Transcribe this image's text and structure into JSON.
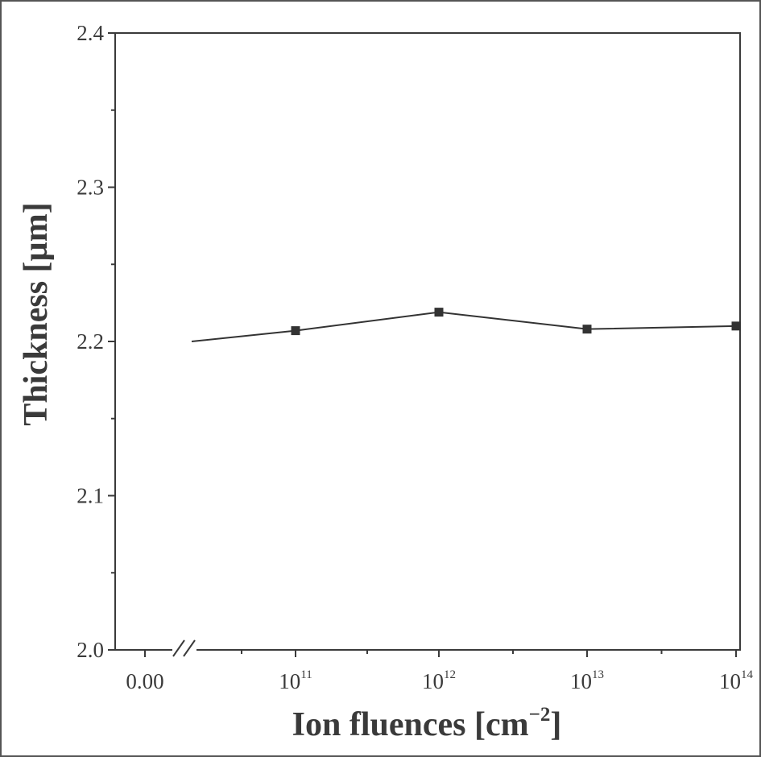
{
  "chart_data": {
    "type": "line",
    "title": "",
    "xlabel": {
      "base": "Ion fluences [cm",
      "sup": "−2",
      "suffix": "]"
    },
    "ylabel": "Thickness [µm]",
    "ylim": [
      2.0,
      2.4
    ],
    "y_ticks": [
      "2.0",
      "2.1",
      "2.2",
      "2.3",
      "2.4"
    ],
    "x_break": true,
    "x_ticks": [
      {
        "base": "0.00",
        "sup": ""
      },
      {
        "base": "10",
        "sup": "11"
      },
      {
        "base": "10",
        "sup": "12"
      },
      {
        "base": "10",
        "sup": "13"
      },
      {
        "base": "10",
        "sup": "14"
      }
    ],
    "series": [
      {
        "marker": "square",
        "color": "#333333",
        "x": [
          "0",
          "1e11",
          "1e12",
          "1e13",
          "1e14"
        ],
        "values": [
          2.2,
          2.207,
          2.219,
          2.208,
          2.21
        ]
      }
    ],
    "grid": false,
    "legend": "none"
  }
}
